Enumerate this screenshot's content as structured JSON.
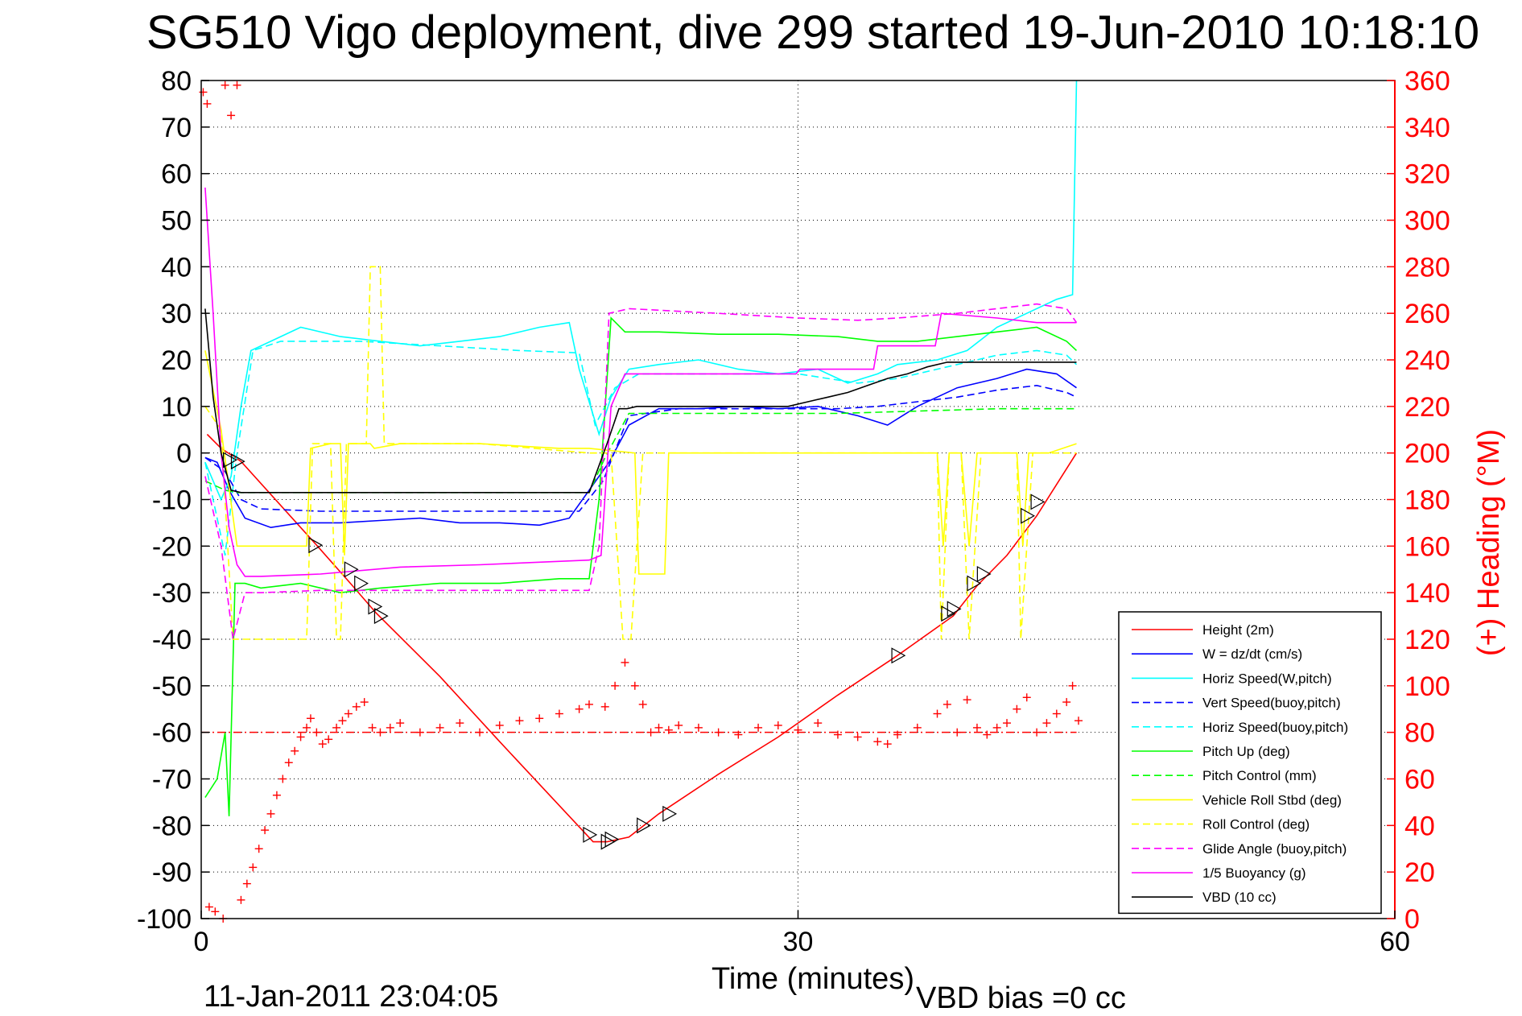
{
  "chart_data": {
    "type": "line",
    "title": "SG510 Vigo deployment, dive 299 started 19-Jun-2010 10:18:10",
    "xlabel": "Time (minutes)",
    "ylabel_right": "(+) Heading (°M)",
    "footer_left": "11-Jan-2011 23:04:05",
    "footer_right": "VBD bias =0 cc",
    "xlim": [
      0,
      60
    ],
    "ylim_left": [
      -100,
      80
    ],
    "ylim_right": [
      0,
      360
    ],
    "x_ticks": [
      0,
      30,
      60
    ],
    "y_ticks_left": [
      80,
      70,
      60,
      50,
      40,
      30,
      20,
      10,
      0,
      -10,
      -20,
      -30,
      -40,
      -50,
      -60,
      -70,
      -80,
      -90,
      -100
    ],
    "y_ticks_right": [
      360,
      340,
      320,
      300,
      280,
      260,
      240,
      220,
      200,
      180,
      160,
      140,
      120,
      100,
      80,
      60,
      40,
      20,
      0
    ],
    "grid": true,
    "legend_position": "bottom-right",
    "colors": {
      "red": "#ff0000",
      "blue": "#0000ff",
      "cyan": "#00ffff",
      "green": "#00ff00",
      "yellow": "#ffff00",
      "magenta": "#ff00ff",
      "black": "#000000",
      "right_axis": "#ff0000"
    },
    "series": [
      {
        "name": "Height (2m)",
        "color": "#ff0000",
        "dash": false,
        "x": [
          0.3,
          1.0,
          2.0,
          5.8,
          7.5,
          8.8,
          12,
          15,
          19.7,
          20.4,
          21.5,
          23,
          26,
          29,
          32,
          35,
          37.8,
          39,
          40.5,
          42,
          44
        ],
        "y": [
          4,
          1,
          -1.8,
          -19.8,
          -28,
          -34.4,
          -48,
          -62,
          -83.5,
          -83.5,
          -82.5,
          -77.5,
          -69,
          -61,
          -52,
          -43.5,
          -35,
          -28.5,
          -22,
          -13.5,
          0
        ]
      },
      {
        "name": "W = dz/dt (cm/s)",
        "color": "#0000ff",
        "dash": false,
        "x": [
          0.2,
          0.8,
          1.4,
          2.2,
          3.5,
          5,
          7,
          9,
          11,
          13,
          15,
          17,
          18.5,
          19.5,
          20.5,
          21.5,
          23,
          25,
          27,
          29,
          31,
          33,
          34.5,
          36,
          38,
          40,
          41.5,
          43,
          44
        ],
        "y": [
          -1,
          -2,
          -8,
          -14,
          -16,
          -15,
          -15,
          -14.5,
          -14,
          -15,
          -15,
          -15.5,
          -14,
          -8,
          -2,
          6,
          9.5,
          9.5,
          10,
          9.5,
          10,
          8,
          6,
          10,
          14,
          16,
          18,
          17,
          14
        ]
      },
      {
        "name": "Horiz Speed(W,pitch)",
        "color": "#00ffff",
        "dash": false,
        "x": [
          0.2,
          1.0,
          1.5,
          2.0,
          2.5,
          3.5,
          5,
          7,
          9,
          11,
          13,
          15,
          17,
          18.5,
          19,
          20,
          20.6,
          21.5,
          23,
          25,
          27,
          29,
          31,
          32.5,
          34,
          35,
          37,
          38.5,
          40,
          41.5,
          43,
          43.8,
          44
        ],
        "y": [
          -2,
          -10,
          -5,
          10,
          22,
          24,
          27,
          25,
          24,
          23,
          24,
          25,
          27,
          28,
          18,
          4,
          12,
          18,
          19,
          20,
          18,
          17,
          18,
          15,
          17,
          19,
          20,
          22,
          27,
          30,
          33,
          34,
          80
        ]
      },
      {
        "name": "Vert Speed(buoy,pitch)",
        "color": "#0000ff",
        "dash": true,
        "x": [
          0.2,
          1.2,
          2.0,
          3,
          6,
          10,
          15,
          19,
          20.2,
          21.5,
          24,
          28,
          32,
          34,
          36,
          38,
          40,
          42,
          43.5,
          44
        ],
        "y": [
          -1,
          -4,
          -10,
          -12,
          -12.5,
          -12.5,
          -12.5,
          -12.5,
          -6,
          8,
          9.5,
          9.5,
          9.5,
          10,
          11,
          12,
          13.5,
          14.5,
          13,
          12
        ]
      },
      {
        "name": "Horiz Speed(buoy,pitch)",
        "color": "#00ffff",
        "dash": true,
        "x": [
          0.2,
          1.2,
          1.8,
          2.6,
          4,
          8,
          12,
          16,
          19,
          19.8,
          20.8,
          22,
          26,
          30,
          33,
          35,
          38,
          40,
          42,
          43.5,
          44
        ],
        "y": [
          -2,
          -22,
          0,
          22,
          24,
          24,
          23,
          22,
          21.5,
          6,
          14,
          17,
          17,
          17,
          15,
          16,
          19,
          21,
          22,
          21,
          19
        ]
      },
      {
        "name": "Pitch Up (deg)",
        "color": "#00ff00",
        "dash": false,
        "x": [
          0.2,
          0.8,
          1.2,
          1.4,
          1.7,
          2.2,
          3,
          5,
          7,
          9,
          12,
          15,
          18,
          19.5,
          20,
          20.6,
          21.3,
          23,
          26,
          29,
          32,
          34,
          36,
          38,
          40,
          42,
          43.5,
          44
        ],
        "y": [
          -74,
          -70,
          -60,
          -78,
          -28,
          -28,
          -29,
          -28,
          -30,
          -29,
          -28,
          -28,
          -27,
          -27,
          -10,
          29,
          26,
          26,
          25.5,
          25.5,
          25,
          24,
          24,
          25,
          26,
          27,
          24,
          22
        ]
      },
      {
        "name": "Pitch Control (mm)",
        "color": "#00ff00",
        "dash": true,
        "x": [
          0.2,
          1.2,
          1.8,
          3,
          8,
          14,
          19.5,
          20.3,
          21.5,
          26,
          32,
          36,
          40,
          43.5,
          44
        ],
        "y": [
          -6,
          -8,
          -8.5,
          -8.5,
          -8.5,
          -8.5,
          -8.5,
          -1,
          8.5,
          8.5,
          8.5,
          9,
          9.5,
          9.5,
          9.5
        ]
      },
      {
        "name": "Vehicle Roll Stbd (deg)",
        "color": "#ffff00",
        "dash": false,
        "x": [
          0.2,
          1.0,
          1.8,
          5.3,
          5.5,
          6.5,
          7.0,
          7.2,
          7.4,
          8.5,
          8.7,
          10,
          14,
          18,
          19.5,
          21.8,
          22,
          23.3,
          23.5,
          26,
          30,
          33,
          36,
          37,
          37.3,
          37.6,
          38.2,
          38.6,
          39,
          41,
          41.3,
          41.6,
          42.1,
          42.6,
          44
        ],
        "y": [
          22,
          5,
          -20,
          -20,
          1,
          2,
          2,
          -22,
          2,
          2,
          1,
          2,
          2,
          1,
          1,
          0,
          -26,
          -26,
          0,
          0,
          0,
          0,
          0,
          0,
          -20,
          0,
          0,
          -20,
          0,
          0,
          -20,
          0,
          0,
          0,
          2
        ]
      },
      {
        "name": "Roll Control (deg)",
        "color": "#ffff00",
        "dash": true,
        "x": [
          0.2,
          1.0,
          1.6,
          5.3,
          5.6,
          6.5,
          6.8,
          7.0,
          7.3,
          8.3,
          8.5,
          9.0,
          9.2,
          14,
          19.5,
          20.6,
          21.2,
          21.6,
          22.2,
          30,
          37,
          37.2,
          37.6,
          38.2,
          38.6,
          39.2,
          41,
          41.2,
          41.8,
          42.4,
          44
        ],
        "y": [
          10,
          5,
          -40,
          -40,
          2,
          2,
          -40,
          -40,
          2,
          2,
          40,
          40,
          2,
          2,
          0,
          0,
          -40,
          -40,
          0,
          0,
          0,
          -40,
          0,
          0,
          -40,
          0,
          0,
          -40,
          0,
          0,
          0
        ]
      },
      {
        "name": "Glide Angle (buoy,pitch)",
        "color": "#ff00ff",
        "dash": true,
        "x": [
          0.2,
          1.0,
          1.6,
          2.2,
          3,
          6,
          10,
          14,
          19.5,
          20.0,
          20.5,
          21.5,
          26,
          30,
          33,
          35,
          38,
          40,
          42,
          43.5,
          44
        ],
        "y": [
          -5,
          -20,
          -40,
          -30,
          -30,
          -29.5,
          -29.5,
          -29.5,
          -29.5,
          -20,
          30,
          31,
          30,
          29,
          28.5,
          29,
          30,
          31,
          32,
          31,
          28
        ]
      },
      {
        "name": "1/5 Buoyancy (g)",
        "color": "#ff00ff",
        "dash": false,
        "x": [
          0.2,
          0.6,
          1.0,
          1.4,
          1.8,
          2.2,
          3,
          6,
          10,
          14,
          19.5,
          20.1,
          20.6,
          21.3,
          26,
          29.9,
          30.1,
          33.8,
          34.0,
          36.9,
          37.2,
          40,
          42,
          43.5,
          44
        ],
        "y": [
          57,
          30,
          0,
          -16,
          -24,
          -26.5,
          -26.5,
          -26,
          -24.5,
          -24,
          -23,
          -22,
          10,
          17,
          17,
          17,
          18,
          18,
          23,
          23,
          30,
          29,
          28,
          28,
          28
        ]
      },
      {
        "name": "VBD (10 cc)",
        "color": "#000000",
        "dash": false,
        "x": [
          0.2,
          0.6,
          1.0,
          1.5,
          2.0,
          3,
          8,
          14,
          19.5,
          20.4,
          21.0,
          21.4,
          21.9,
          26,
          29.5,
          30.5,
          31.5,
          32.5,
          33.5,
          34.5,
          35.5,
          36.5,
          37.5,
          40,
          44
        ],
        "y": [
          31,
          12,
          0,
          -8,
          -8.5,
          -8.5,
          -8.5,
          -8.5,
          -8.5,
          2,
          9.5,
          9.5,
          10,
          10,
          10,
          11,
          12,
          13,
          14.5,
          16,
          17,
          18.5,
          19.5,
          19.5,
          19.5
        ]
      }
    ],
    "heading_series": {
      "name": "(+) Heading (°M)",
      "axis": "right",
      "marker": "+",
      "color": "#ff0000",
      "x": [
        0.1,
        0.3,
        1.2,
        1.5,
        1.8,
        0.4,
        0.7,
        1.1,
        2.0,
        2.3,
        2.6,
        2.9,
        3.2,
        3.5,
        3.8,
        4.1,
        4.4,
        4.7,
        5.0,
        5.3,
        5.5,
        5.8,
        6.1,
        6.4,
        6.8,
        7.1,
        7.4,
        7.8,
        8.2,
        8.6,
        9.0,
        9.5,
        10,
        11,
        12,
        13,
        14,
        15,
        16,
        17,
        18,
        19,
        19.5,
        20.3,
        20.8,
        21.3,
        21.8,
        22.2,
        22.6,
        23,
        23.5,
        24,
        25,
        26,
        27,
        28,
        29,
        30,
        31,
        32,
        33,
        34,
        34.5,
        35,
        36,
        37,
        37.5,
        38,
        38.5,
        39,
        39.5,
        40,
        40.5,
        41,
        41.5,
        42,
        42.5,
        43,
        43.5,
        43.8,
        44.1
      ],
      "y": [
        355,
        350,
        358,
        345,
        358,
        5,
        3,
        0,
        8,
        15,
        22,
        30,
        38,
        45,
        53,
        60,
        67,
        72,
        78,
        82,
        86,
        80,
        75,
        77,
        82,
        85,
        88,
        91,
        93,
        82,
        80,
        82,
        84,
        80,
        82,
        84,
        80,
        83,
        85,
        86,
        88,
        90,
        92,
        91,
        100,
        110,
        100,
        92,
        80,
        82,
        81,
        83,
        82,
        80,
        79,
        82,
        83,
        81,
        84,
        79,
        78,
        76,
        75,
        79,
        82,
        88,
        92,
        80,
        94,
        82,
        79,
        82,
        84,
        90,
        95,
        80,
        84,
        88,
        93,
        100,
        85
      ]
    },
    "horizontal_reference": {
      "y": -60,
      "style": "dash-dot",
      "color": "#ff0000"
    },
    "triangles": {
      "x": [
        1.4,
        1.8,
        5.7,
        7.5,
        8.0,
        8.7,
        9.0,
        19.5,
        20.4,
        20.6,
        22.2,
        23.5,
        35.0,
        37.5,
        37.8,
        38.8,
        39.3,
        41.5,
        42.0
      ],
      "y": [
        -1.5,
        -1.8,
        -19.8,
        -25,
        -28,
        -33,
        -35,
        -82,
        -83.5,
        -83,
        -80,
        -77.5,
        -43.5,
        -34.5,
        -33.5,
        -28,
        -26,
        -13.5,
        -10.5
      ]
    }
  }
}
